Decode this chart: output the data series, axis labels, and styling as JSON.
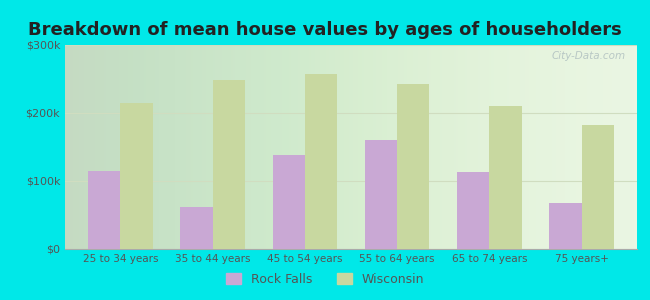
{
  "title": "Breakdown of mean house values by ages of householders",
  "categories": [
    "25 to 34 years",
    "35 to 44 years",
    "45 to 54 years",
    "55 to 64 years",
    "65 to 74 years",
    "75 years+"
  ],
  "rock_falls": [
    115000,
    62000,
    138000,
    160000,
    113000,
    68000
  ],
  "wisconsin": [
    215000,
    248000,
    258000,
    242000,
    210000,
    183000
  ],
  "rock_falls_color": "#c9a8d4",
  "wisconsin_color": "#c8d8a0",
  "background_color": "#00e8e8",
  "plot_bg_color": "#e8f5e0",
  "ylim": [
    0,
    300000
  ],
  "yticks": [
    0,
    100000,
    200000,
    300000
  ],
  "ytick_labels": [
    "$0",
    "$100k",
    "$200k",
    "$300k"
  ],
  "title_fontsize": 13,
  "legend_labels": [
    "Rock Falls",
    "Wisconsin"
  ],
  "bar_width": 0.35,
  "grid_color": "#d0ddc0",
  "tick_color": "#555555",
  "title_color": "#222222",
  "watermark_text": "City-Data.com"
}
